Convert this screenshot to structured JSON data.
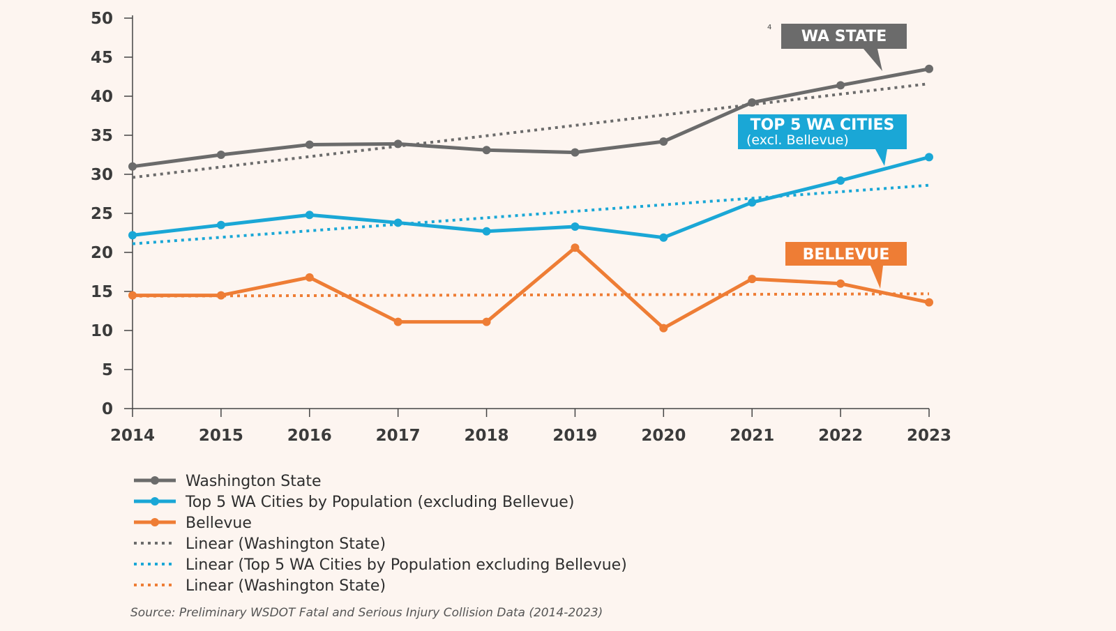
{
  "colors": {
    "background": "#fdf5f0",
    "axis": "#444444",
    "washington_state": "#6b6b6b",
    "top5": "#1aa7d6",
    "bellevue": "#ee7d35"
  },
  "chart_data": {
    "type": "line",
    "x": [
      "2014",
      "2015",
      "2016",
      "2017",
      "2018",
      "2019",
      "2020",
      "2021",
      "2022",
      "2023"
    ],
    "ylim": [
      0,
      50
    ],
    "y_ticks": [
      "0",
      "5",
      "10",
      "15",
      "20",
      "25",
      "30",
      "35",
      "40",
      "45",
      "50"
    ],
    "series": [
      {
        "name": "Washington State",
        "values": [
          31.0,
          32.5,
          33.8,
          33.9,
          33.1,
          32.8,
          34.2,
          39.2,
          41.4,
          43.5
        ]
      },
      {
        "name": "Top 5 WA Cities by Population (excluding Bellevue)",
        "values": [
          22.2,
          23.5,
          24.8,
          23.8,
          22.7,
          23.3,
          21.9,
          26.4,
          29.2,
          32.2
        ]
      },
      {
        "name": "Bellevue",
        "values": [
          14.5,
          14.5,
          16.8,
          11.1,
          11.1,
          20.6,
          10.3,
          16.6,
          16.0,
          13.6
        ]
      }
    ],
    "trendlines": [
      {
        "name": "Linear (Washington State)",
        "of": "Washington State",
        "start": 29.6,
        "end": 41.6
      },
      {
        "name": "Linear (Top 5 WA Cities by Population excluding Bellevue)",
        "of": "Top 5 WA Cities by Population (excluding Bellevue)",
        "start": 21.1,
        "end": 28.6
      },
      {
        "name": "Linear (Washington State)",
        "of": "Bellevue",
        "start": 14.4,
        "end": 14.7
      }
    ],
    "callouts": [
      {
        "title": "WA STATE",
        "subtitle": "",
        "series": "Washington State"
      },
      {
        "title": "TOP 5 WA CITIES",
        "subtitle": "(excl. Bellevue)",
        "series": "Top 5 WA Cities by Population (excluding Bellevue)"
      },
      {
        "title": "BELLEVUE",
        "subtitle": "",
        "series": "Bellevue"
      }
    ],
    "legend": [
      {
        "label": "Washington State",
        "style": "solid",
        "series": "Washington State"
      },
      {
        "label": "Top 5 WA Cities by Population (excluding Bellevue)",
        "style": "solid",
        "series": "Top 5 WA Cities by Population (excluding Bellevue)"
      },
      {
        "label": "Bellevue",
        "style": "solid",
        "series": "Bellevue"
      },
      {
        "label": "Linear (Washington State)",
        "style": "dotted",
        "series": "Washington State"
      },
      {
        "label": "Linear (Top 5 WA Cities by Population excluding Bellevue)",
        "style": "dotted",
        "series": "Top 5 WA Cities by Population (excluding Bellevue)"
      },
      {
        "label": "Linear (Washington State)",
        "style": "dotted",
        "series": "Bellevue"
      }
    ],
    "legend_position": "bottom-left",
    "grid": false,
    "source": "Source: Preliminary WSDOT Fatal and Serious Injury Collision Data (2014-2023)",
    "stray_mark": "4"
  }
}
